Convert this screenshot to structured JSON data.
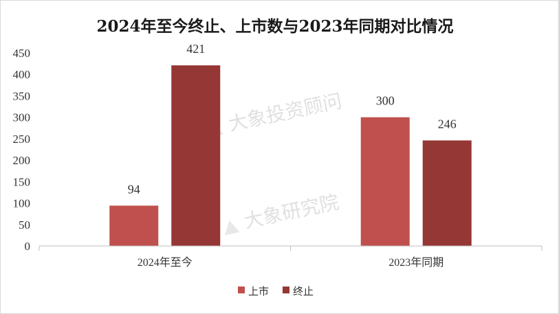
{
  "chart_data": {
    "type": "bar",
    "title": "2024年至今终止、上市数与2023年同期对比情况",
    "xlabel": "",
    "ylabel": "",
    "categories": [
      "2024年至今",
      "2023年同期"
    ],
    "series": [
      {
        "name": "上市",
        "values": [
          94,
          300
        ],
        "color": "#c0504d"
      },
      {
        "name": "终止",
        "values": [
          421,
          246
        ],
        "color": "#953735"
      }
    ],
    "ylim": [
      0,
      450
    ],
    "yticks": [
      "0",
      "50",
      "100",
      "150",
      "200",
      "250",
      "300",
      "350",
      "400",
      "450"
    ],
    "grid": false,
    "legend_position": "bottom-center"
  },
  "watermarks": [
    "大象投资顾问",
    "大象研究院"
  ],
  "colors": {
    "axis": "#bfbfbf",
    "watermark": "#c8c8c8"
  }
}
